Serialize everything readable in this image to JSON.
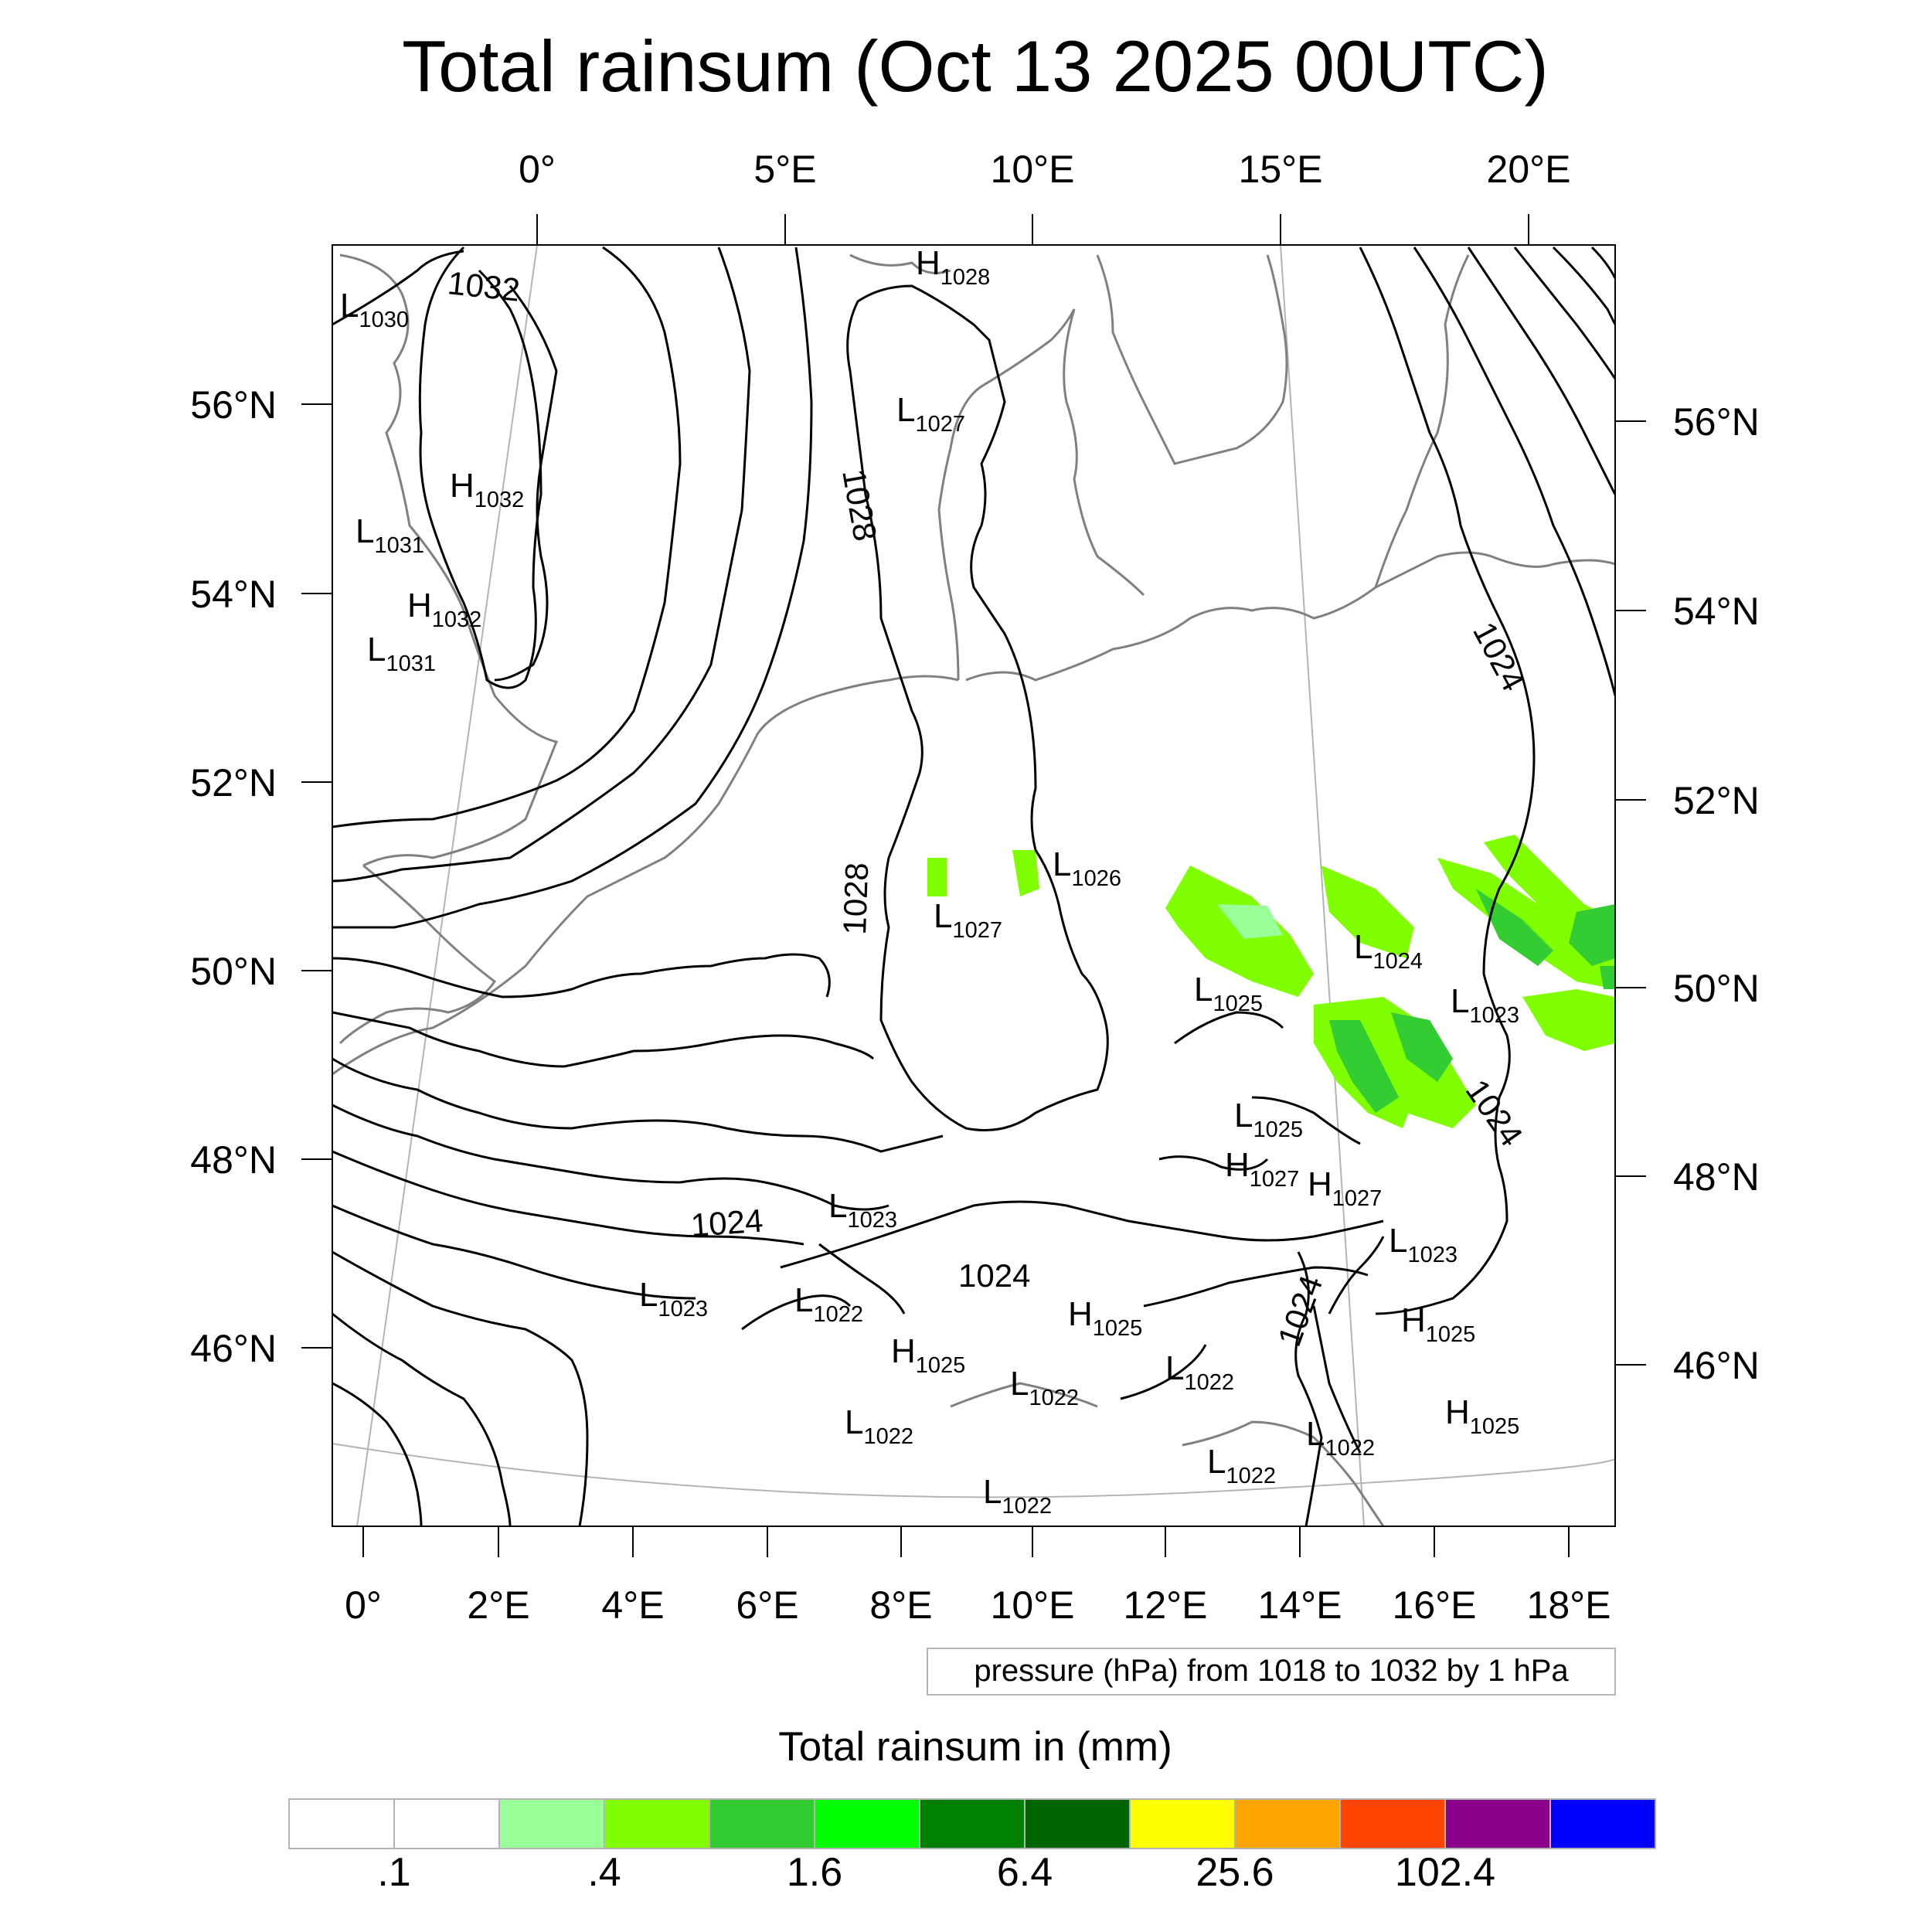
{
  "title": "Total rainsum (Oct 13 2025 00UTC)",
  "top_lon_labels": [
    "0°",
    "5°E",
    "10°E",
    "15°E",
    "20°E"
  ],
  "bottom_lon_labels": [
    "0°",
    "2°E",
    "4°E",
    "6°E",
    "8°E",
    "10°E",
    "12°E",
    "14°E",
    "16°E",
    "18°E"
  ],
  "left_lat_labels": [
    "56°N",
    "54°N",
    "52°N",
    "50°N",
    "48°N",
    "46°N"
  ],
  "right_lat_labels": [
    "56°N",
    "54°N",
    "52°N",
    "50°N",
    "48°N",
    "46°N"
  ],
  "contour_note": "pressure (hPa) from 1018 to 1032 by 1 hPa",
  "contour_labels": [
    "1032",
    "1028",
    "1028",
    "1024",
    "1024",
    "1024",
    "1024",
    "1024"
  ],
  "pressure_centers": [
    {
      "letter": "L",
      "value": "1030"
    },
    {
      "letter": "H",
      "value": "1028"
    },
    {
      "letter": "L",
      "value": "1027"
    },
    {
      "letter": "H",
      "value": "1032"
    },
    {
      "letter": "L",
      "value": "1031"
    },
    {
      "letter": "H",
      "value": "1032"
    },
    {
      "letter": "L",
      "value": "1031"
    },
    {
      "letter": "L",
      "value": "1026"
    },
    {
      "letter": "L",
      "value": "1027"
    },
    {
      "letter": "L",
      "value": "1024"
    },
    {
      "letter": "L",
      "value": "1025"
    },
    {
      "letter": "L",
      "value": "1023"
    },
    {
      "letter": "L",
      "value": "1025"
    },
    {
      "letter": "H",
      "value": "1027"
    },
    {
      "letter": "H",
      "value": "1027"
    },
    {
      "letter": "L",
      "value": "1023"
    },
    {
      "letter": "L",
      "value": "1023"
    },
    {
      "letter": "L",
      "value": "1023"
    },
    {
      "letter": "L",
      "value": "1022"
    },
    {
      "letter": "H",
      "value": "1025"
    },
    {
      "letter": "H",
      "value": "1025"
    },
    {
      "letter": "H",
      "value": "1025"
    },
    {
      "letter": "L",
      "value": "1022"
    },
    {
      "letter": "L",
      "value": "1022"
    },
    {
      "letter": "L",
      "value": "1022"
    },
    {
      "letter": "L",
      "value": "1022"
    },
    {
      "letter": "L",
      "value": "1022"
    },
    {
      "letter": "H",
      "value": "1025"
    },
    {
      "letter": "L",
      "value": "1022"
    }
  ],
  "colorbar": {
    "title": "Total rainsum in (mm)",
    "colors": [
      "#ffffff",
      "#ffffff",
      "#99ff99",
      "#80ff00",
      "#33cc33",
      "#00ff00",
      "#008000",
      "#006400",
      "#ffff00",
      "#ffa500",
      "#ff4500",
      "#8b008b",
      "#0000ff"
    ],
    "tick_labels": [
      ".1",
      ".4",
      "1.6",
      "6.4",
      "25.6",
      "102.4"
    ]
  },
  "colors": {
    "contour": "#000000",
    "coastline": "#808080",
    "graticule": "#b4b4b4"
  }
}
